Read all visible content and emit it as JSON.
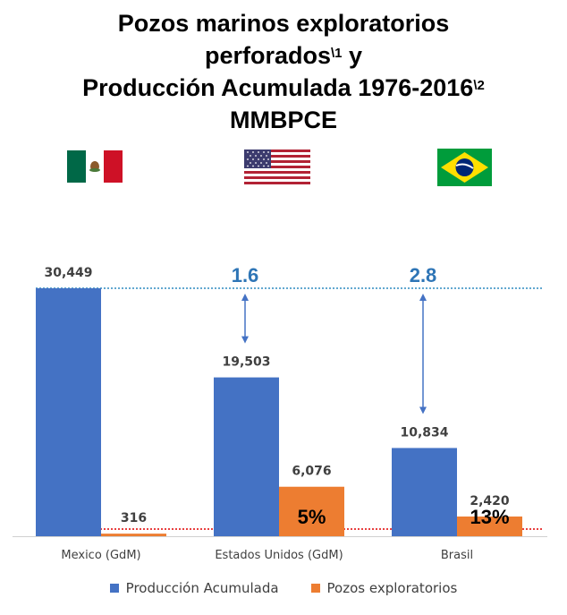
{
  "title": {
    "line1": "Pozos marinos exploratorios",
    "line2": "perforados",
    "line2_sup": "\\1",
    "line2_suffix": " y",
    "line3": "Producción Acumulada 1976-2016",
    "line3_sup": "\\2",
    "line4": "MMBPCE"
  },
  "flags": [
    {
      "country": "Mexico",
      "icon": "mexico-flag-icon"
    },
    {
      "country": "Estados Unidos",
      "icon": "usa-flag-icon"
    },
    {
      "country": "Brasil",
      "icon": "brazil-flag-icon"
    }
  ],
  "colors": {
    "blue": "#4472C4",
    "orange": "#ED7D31",
    "ratio_text": "#2E75B6",
    "ref_blue": "#2E8BC0",
    "ref_red": "#E00000"
  },
  "chart_data": {
    "type": "bar",
    "categories": [
      "Mexico (GdM)",
      "Estados Unidos (GdM)",
      "Brasil"
    ],
    "series": [
      {
        "name": "Producción Acumulada",
        "values": [
          30449,
          19503,
          10834
        ],
        "labels": [
          "30,449",
          "19,503",
          "10,834"
        ]
      },
      {
        "name": "Pozos exploratorios",
        "values": [
          316,
          6076,
          2420
        ],
        "labels": [
          "316",
          "6,076",
          "2,420"
        ]
      }
    ],
    "ratios": [
      null,
      "1.6",
      "2.8"
    ],
    "percentages": [
      null,
      "5%",
      "13%"
    ],
    "ylim": [
      0,
      30449
    ],
    "legend_position": "bottom"
  },
  "legend": [
    {
      "label": "Producción Acumulada"
    },
    {
      "label": "Pozos exploratorios"
    }
  ]
}
